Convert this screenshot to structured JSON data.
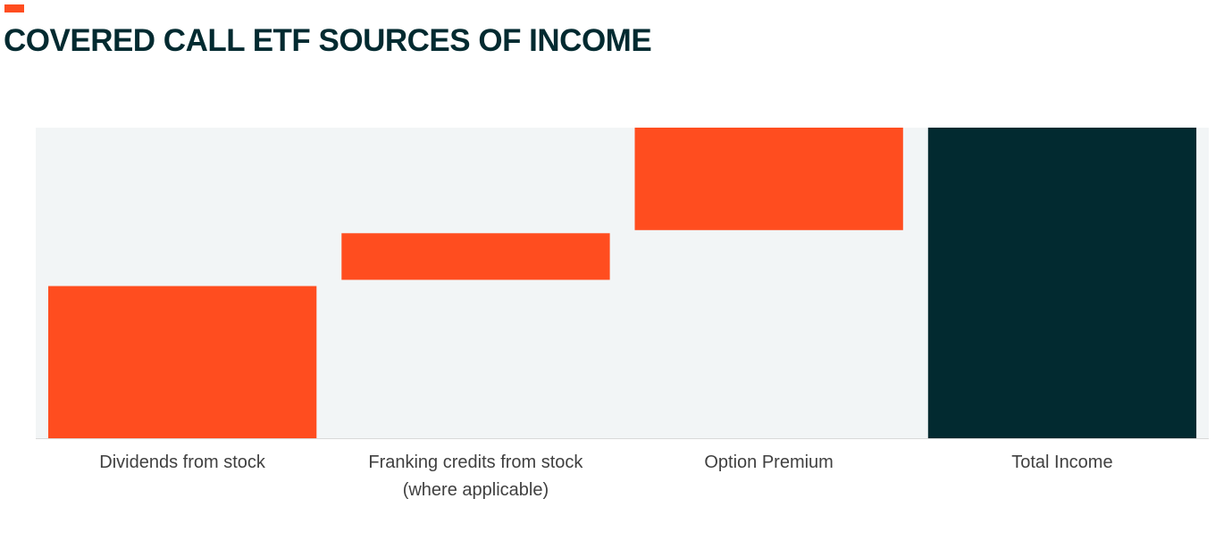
{
  "colors": {
    "accent": "#FF4D1F",
    "total": "#022A30",
    "plot_background": "#F2F5F6",
    "title": "#022A30",
    "baseline": "#D9D9D9"
  },
  "chart_data": {
    "type": "bar",
    "subtype": "waterfall",
    "title": "COVERED CALL ETF SOURCES OF INCOME",
    "xlabel": "",
    "ylabel": "",
    "ylim": [
      0,
      100
    ],
    "grid": false,
    "legend": "none",
    "categories": [
      [
        "Dividends from stock"
      ],
      [
        "Franking credits from stock",
        "(where applicable)"
      ],
      [
        "Option Premium"
      ],
      [
        "Total Income"
      ]
    ],
    "bars": [
      {
        "start": 0,
        "end": 49,
        "kind": "increment"
      },
      {
        "start": 51,
        "end": 66,
        "kind": "increment"
      },
      {
        "start": 67,
        "end": 100,
        "kind": "increment"
      },
      {
        "start": 0,
        "end": 100,
        "kind": "total"
      }
    ]
  }
}
